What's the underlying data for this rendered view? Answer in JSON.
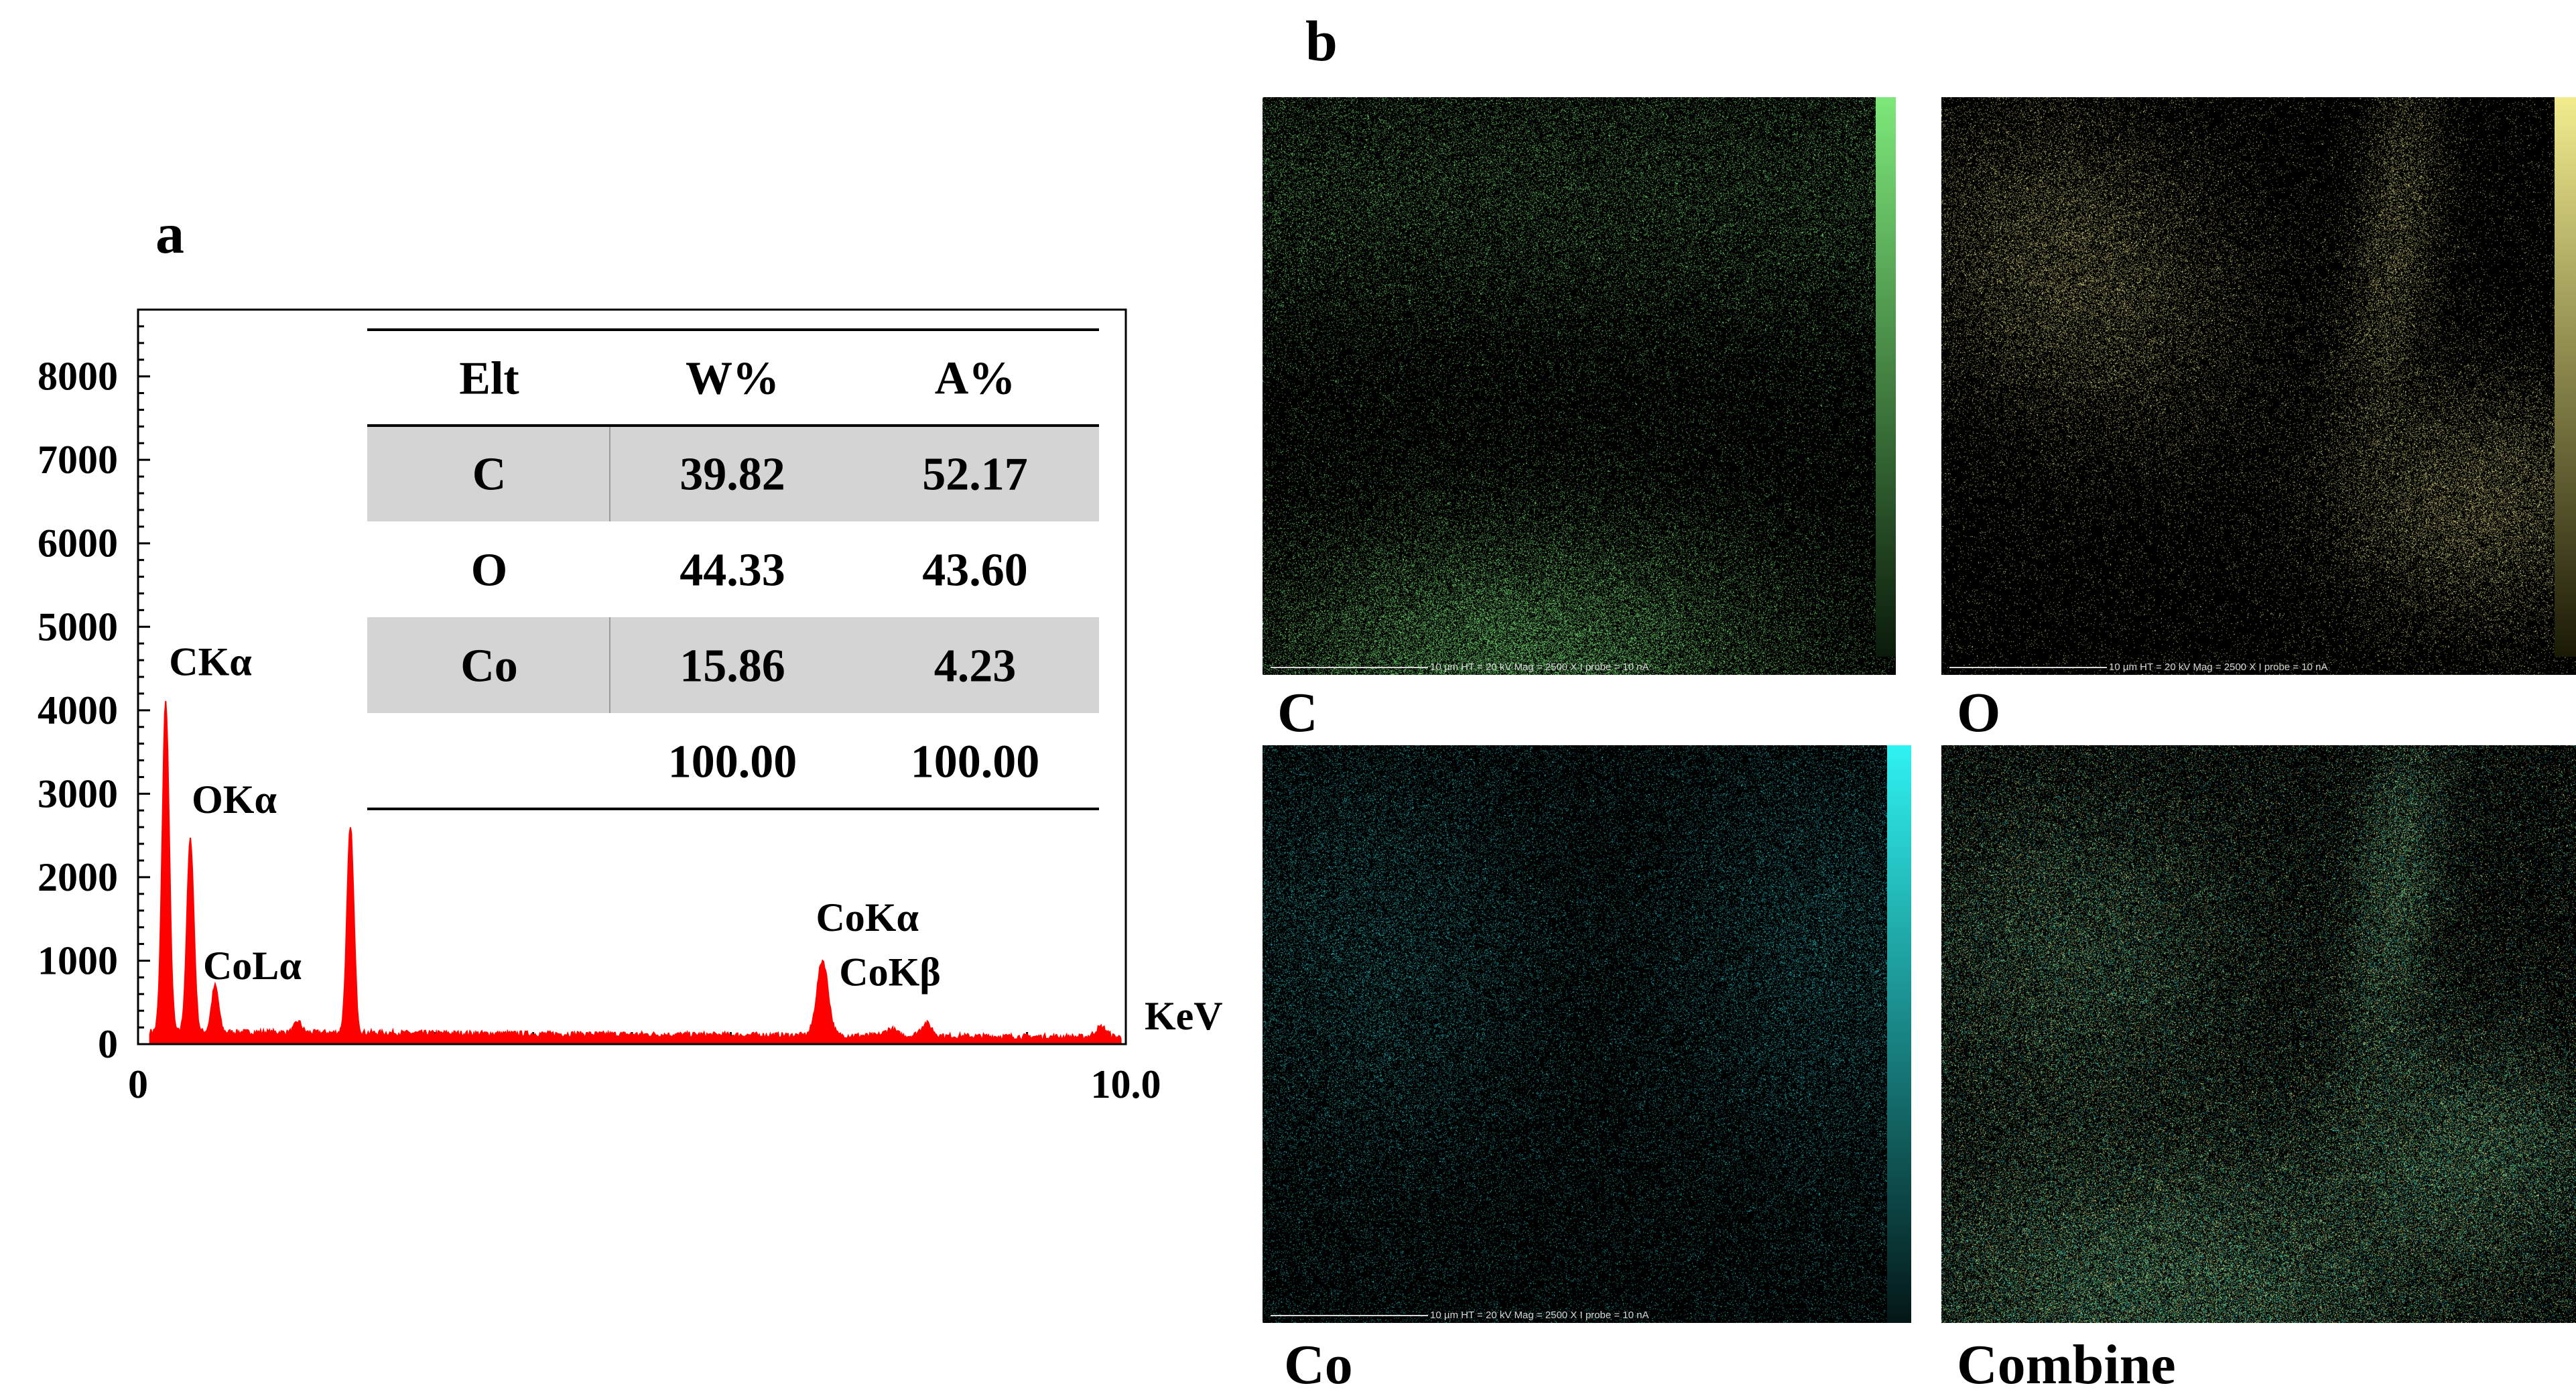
{
  "colors": {
    "spectrum": "#ff0000",
    "carbon_map": "#7de87a",
    "oxygen_map": "#e6df8a",
    "cobalt_map": "#27c7c9",
    "table_band": "#d4d4d4"
  },
  "panel_a": {
    "label": "a"
  },
  "panel_b": {
    "label": "b"
  },
  "chart_data": {
    "type": "line",
    "title": "",
    "xlabel": "KeV",
    "ylabel": "",
    "xlim": [
      0,
      10.0
    ],
    "ylim": [
      0,
      8800
    ],
    "y_ticks": [
      0,
      1000,
      2000,
      3000,
      4000,
      5000,
      6000,
      7000,
      8000
    ],
    "x_tick_labels": [
      {
        "label": "0",
        "value": 0
      },
      {
        "label": "10.0",
        "value": 10.0
      }
    ],
    "baseline_counts": 150,
    "peaks": [
      {
        "x": 0.28,
        "y": 4100,
        "label": "CKα"
      },
      {
        "x": 0.53,
        "y": 2450,
        "label": "OKα"
      },
      {
        "x": 0.78,
        "y": 700,
        "label": "CoLα"
      },
      {
        "x": 1.62,
        "y": 280,
        "label": ""
      },
      {
        "x": 2.15,
        "y": 2600,
        "label": ""
      },
      {
        "x": 6.93,
        "y": 1050,
        "label": "CoKα"
      },
      {
        "x": 7.62,
        "y": 230,
        "label": ""
      },
      {
        "x": 7.98,
        "y": 300,
        "label": "CoKβ"
      },
      {
        "x": 9.75,
        "y": 270,
        "label": ""
      }
    ],
    "table": {
      "headers": [
        "Elt",
        "W%",
        "A%"
      ],
      "rows": [
        [
          "C",
          "39.82",
          "52.17"
        ],
        [
          "O",
          "44.33",
          "43.60"
        ],
        [
          "Co",
          "15.86",
          "4.23"
        ],
        [
          "",
          "100.00",
          "100.00"
        ]
      ]
    }
  },
  "maps": [
    {
      "caption": "C",
      "scalebar": "10 µm   HT = 20 kV   Mag = 2500 X   I probe = 10 nA"
    },
    {
      "caption": "O",
      "scalebar": "10 µm   HT = 20 kV   Mag = 2500 X   I probe = 10 nA"
    },
    {
      "caption": "Co",
      "scalebar": "10 µm   HT = 20 kV   Mag = 2500 X   I probe = 10 nA"
    },
    {
      "caption": "Combine",
      "scalebar": ""
    }
  ]
}
